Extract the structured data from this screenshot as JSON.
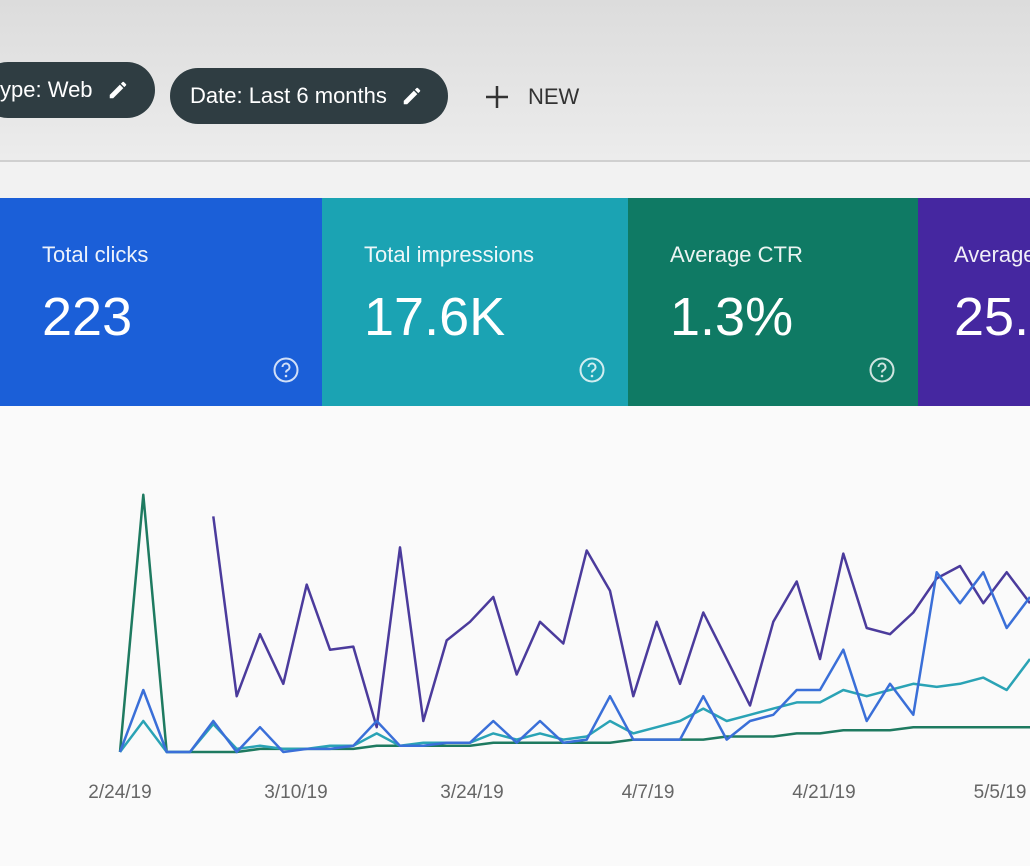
{
  "filters": [
    {
      "label": "ype: Web"
    },
    {
      "label": "Date: Last 6 months"
    }
  ],
  "new_button": "NEW",
  "cards": [
    {
      "title": "Total clicks",
      "value": "223",
      "color": "#1b5fd8"
    },
    {
      "title": "Total impressions",
      "value": "17.6K",
      "color": "#1ba3b3"
    },
    {
      "title": "Average CTR",
      "value": "1.3%",
      "color": "#0f7a64"
    },
    {
      "title": "Average",
      "value": "25.",
      "color": "#4527a0"
    }
  ],
  "chart": {
    "type": "line",
    "x_labels": [
      "2/24/19",
      "3/10/19",
      "3/24/19",
      "4/7/19",
      "4/21/19",
      "5/5/19"
    ],
    "ylim": [
      0,
      100
    ],
    "series": [
      {
        "color": "#4b3b9c",
        "values": [
          null,
          null,
          null,
          null,
          76,
          18,
          38,
          22,
          54,
          33,
          34,
          8,
          66,
          10,
          36,
          42,
          50,
          25,
          42,
          35,
          65,
          52,
          18,
          42,
          22,
          45,
          30,
          15,
          42,
          55,
          30,
          64,
          40,
          38,
          45,
          56,
          60,
          48,
          58,
          48
        ]
      },
      {
        "color": "#1e7a60",
        "values": [
          0,
          83,
          0,
          0,
          0,
          0,
          1,
          1,
          1,
          1,
          1,
          2,
          2,
          2,
          2,
          2,
          3,
          3,
          3,
          3,
          3,
          3,
          4,
          4,
          4,
          4,
          5,
          5,
          5,
          6,
          6,
          7,
          7,
          7,
          8,
          8,
          8,
          8,
          8,
          8
        ]
      },
      {
        "color": "#2aa3b5",
        "values": [
          0,
          10,
          0,
          0,
          9,
          1,
          2,
          1,
          1,
          2,
          2,
          6,
          2,
          3,
          3,
          3,
          6,
          4,
          6,
          4,
          5,
          10,
          6,
          8,
          10,
          14,
          10,
          12,
          14,
          16,
          16,
          20,
          18,
          20,
          22,
          21,
          22,
          24,
          20,
          30
        ]
      },
      {
        "color": "#3a6fd8",
        "values": [
          0,
          20,
          0,
          0,
          10,
          0,
          8,
          0,
          1,
          1,
          2,
          10,
          2,
          2,
          3,
          3,
          10,
          3,
          10,
          3,
          4,
          18,
          4,
          4,
          4,
          18,
          4,
          10,
          12,
          20,
          20,
          33,
          10,
          22,
          12,
          58,
          48,
          58,
          40,
          50
        ]
      }
    ]
  }
}
